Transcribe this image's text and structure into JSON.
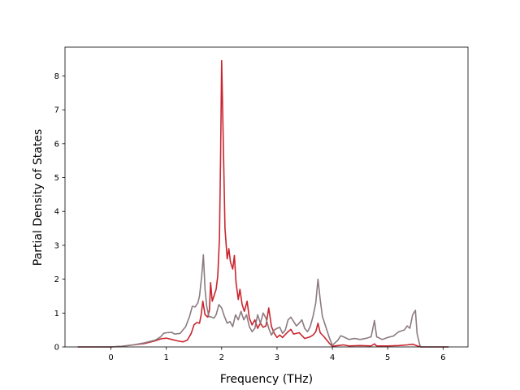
{
  "chart_data": {
    "type": "line",
    "title": "",
    "xlabel": "Frequency (THz)",
    "ylabel": "Partial Density of States",
    "xlim": [
      -0.83,
      6.45
    ],
    "ylim": [
      0,
      8.85
    ],
    "xticks": [
      0,
      1,
      2,
      3,
      4,
      5,
      6
    ],
    "yticks": [
      0,
      1,
      2,
      3,
      4,
      5,
      6,
      7,
      8
    ],
    "grid": false,
    "legend": "none",
    "series": [
      {
        "color": "#c9262f",
        "points": [
          [
            -0.6,
            0
          ],
          [
            0,
            0
          ],
          [
            0.2,
            0.02
          ],
          [
            0.4,
            0.06
          ],
          [
            0.6,
            0.1
          ],
          [
            0.8,
            0.18
          ],
          [
            0.9,
            0.24
          ],
          [
            1.0,
            0.26
          ],
          [
            1.1,
            0.22
          ],
          [
            1.2,
            0.18
          ],
          [
            1.3,
            0.15
          ],
          [
            1.38,
            0.2
          ],
          [
            1.45,
            0.4
          ],
          [
            1.5,
            0.65
          ],
          [
            1.55,
            0.72
          ],
          [
            1.6,
            0.7
          ],
          [
            1.63,
            0.95
          ],
          [
            1.66,
            1.35
          ],
          [
            1.7,
            0.95
          ],
          [
            1.75,
            0.88
          ],
          [
            1.78,
            1.1
          ],
          [
            1.8,
            1.9
          ],
          [
            1.83,
            1.35
          ],
          [
            1.87,
            1.55
          ],
          [
            1.9,
            1.7
          ],
          [
            1.93,
            2.1
          ],
          [
            1.96,
            3.2
          ],
          [
            1.98,
            5.5
          ],
          [
            2.0,
            8.45
          ],
          [
            2.03,
            6.0
          ],
          [
            2.06,
            3.5
          ],
          [
            2.1,
            2.6
          ],
          [
            2.13,
            2.9
          ],
          [
            2.16,
            2.5
          ],
          [
            2.2,
            2.3
          ],
          [
            2.23,
            2.7
          ],
          [
            2.26,
            1.9
          ],
          [
            2.3,
            1.4
          ],
          [
            2.33,
            1.7
          ],
          [
            2.37,
            1.25
          ],
          [
            2.41,
            1.05
          ],
          [
            2.46,
            1.35
          ],
          [
            2.5,
            0.85
          ],
          [
            2.55,
            0.65
          ],
          [
            2.6,
            0.8
          ],
          [
            2.65,
            0.55
          ],
          [
            2.7,
            0.7
          ],
          [
            2.75,
            0.58
          ],
          [
            2.8,
            0.62
          ],
          [
            2.85,
            1.15
          ],
          [
            2.9,
            0.6
          ],
          [
            2.95,
            0.4
          ],
          [
            3.0,
            0.28
          ],
          [
            3.05,
            0.35
          ],
          [
            3.1,
            0.28
          ],
          [
            3.2,
            0.45
          ],
          [
            3.25,
            0.52
          ],
          [
            3.3,
            0.38
          ],
          [
            3.4,
            0.42
          ],
          [
            3.5,
            0.25
          ],
          [
            3.6,
            0.3
          ],
          [
            3.65,
            0.35
          ],
          [
            3.7,
            0.45
          ],
          [
            3.74,
            0.7
          ],
          [
            3.78,
            0.42
          ],
          [
            3.85,
            0.3
          ],
          [
            3.95,
            0.1
          ],
          [
            4.0,
            0.02
          ],
          [
            4.1,
            0.04
          ],
          [
            4.2,
            0.06
          ],
          [
            4.3,
            0.03
          ],
          [
            4.5,
            0.04
          ],
          [
            4.7,
            0.03
          ],
          [
            4.76,
            0.09
          ],
          [
            4.8,
            0.03
          ],
          [
            5.0,
            0.03
          ],
          [
            5.2,
            0.04
          ],
          [
            5.35,
            0.06
          ],
          [
            5.45,
            0.08
          ],
          [
            5.5,
            0.05
          ],
          [
            5.55,
            0.02
          ],
          [
            5.6,
            0
          ],
          [
            6.1,
            0
          ]
        ]
      },
      {
        "color": "#8c7b80",
        "points": [
          [
            -0.6,
            0
          ],
          [
            0,
            0
          ],
          [
            0.2,
            0.02
          ],
          [
            0.4,
            0.06
          ],
          [
            0.6,
            0.12
          ],
          [
            0.8,
            0.2
          ],
          [
            0.9,
            0.3
          ],
          [
            0.95,
            0.4
          ],
          [
            1.0,
            0.42
          ],
          [
            1.1,
            0.43
          ],
          [
            1.15,
            0.38
          ],
          [
            1.25,
            0.4
          ],
          [
            1.35,
            0.6
          ],
          [
            1.42,
            0.9
          ],
          [
            1.47,
            1.2
          ],
          [
            1.52,
            1.18
          ],
          [
            1.57,
            1.3
          ],
          [
            1.6,
            1.5
          ],
          [
            1.64,
            2.1
          ],
          [
            1.67,
            2.72
          ],
          [
            1.7,
            1.7
          ],
          [
            1.73,
            1.2
          ],
          [
            1.77,
            0.9
          ],
          [
            1.82,
            0.88
          ],
          [
            1.86,
            0.85
          ],
          [
            1.9,
            0.95
          ],
          [
            1.95,
            1.25
          ],
          [
            2.0,
            1.15
          ],
          [
            2.05,
            0.9
          ],
          [
            2.1,
            0.7
          ],
          [
            2.15,
            0.75
          ],
          [
            2.2,
            0.6
          ],
          [
            2.25,
            0.95
          ],
          [
            2.3,
            0.8
          ],
          [
            2.35,
            1.05
          ],
          [
            2.4,
            0.8
          ],
          [
            2.45,
            0.95
          ],
          [
            2.5,
            0.6
          ],
          [
            2.55,
            0.45
          ],
          [
            2.6,
            0.55
          ],
          [
            2.65,
            0.95
          ],
          [
            2.7,
            0.7
          ],
          [
            2.75,
            1.0
          ],
          [
            2.8,
            0.85
          ],
          [
            2.85,
            0.55
          ],
          [
            2.9,
            0.35
          ],
          [
            2.95,
            0.5
          ],
          [
            3.0,
            0.55
          ],
          [
            3.05,
            0.58
          ],
          [
            3.1,
            0.4
          ],
          [
            3.15,
            0.5
          ],
          [
            3.2,
            0.8
          ],
          [
            3.25,
            0.88
          ],
          [
            3.3,
            0.75
          ],
          [
            3.35,
            0.62
          ],
          [
            3.4,
            0.7
          ],
          [
            3.45,
            0.8
          ],
          [
            3.5,
            0.55
          ],
          [
            3.55,
            0.45
          ],
          [
            3.6,
            0.6
          ],
          [
            3.65,
            0.9
          ],
          [
            3.7,
            1.3
          ],
          [
            3.74,
            2.0
          ],
          [
            3.78,
            1.4
          ],
          [
            3.82,
            0.9
          ],
          [
            3.9,
            0.5
          ],
          [
            3.95,
            0.25
          ],
          [
            4.0,
            0.05
          ],
          [
            4.1,
            0.2
          ],
          [
            4.15,
            0.33
          ],
          [
            4.2,
            0.3
          ],
          [
            4.3,
            0.22
          ],
          [
            4.4,
            0.25
          ],
          [
            4.5,
            0.22
          ],
          [
            4.6,
            0.25
          ],
          [
            4.7,
            0.3
          ],
          [
            4.76,
            0.78
          ],
          [
            4.8,
            0.3
          ],
          [
            4.9,
            0.22
          ],
          [
            5.0,
            0.28
          ],
          [
            5.1,
            0.32
          ],
          [
            5.2,
            0.45
          ],
          [
            5.3,
            0.5
          ],
          [
            5.35,
            0.62
          ],
          [
            5.4,
            0.55
          ],
          [
            5.45,
            0.95
          ],
          [
            5.5,
            1.08
          ],
          [
            5.53,
            0.4
          ],
          [
            5.58,
            0.05
          ],
          [
            5.6,
            0
          ],
          [
            6.1,
            0
          ]
        ]
      }
    ]
  }
}
